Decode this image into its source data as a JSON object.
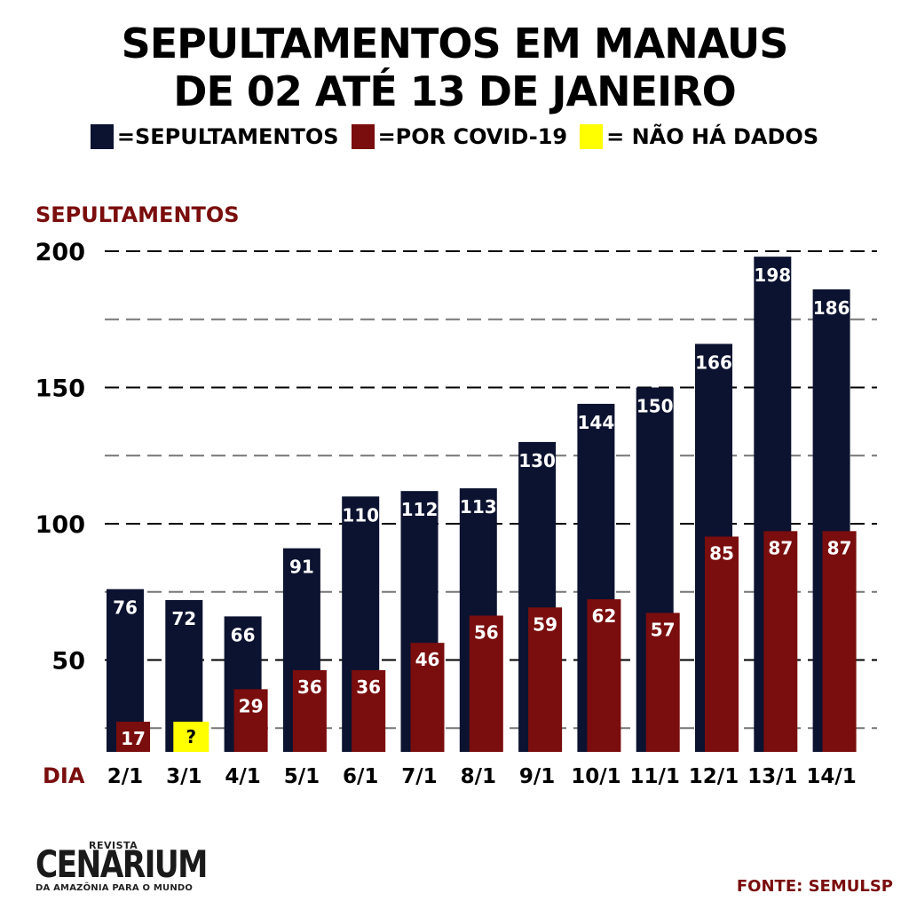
{
  "header": {
    "title_line1": "SEPULTAMENTOS EM MANAUS",
    "title_line2": "DE 02 ATÉ 13 DE JANEIRO"
  },
  "legend": {
    "sepultamentos": "=SEPULTAMENTOS",
    "covid": "=POR COVID-19",
    "no_data": "= NÃO HÁ DADOS"
  },
  "colors": {
    "sepultamentos": "#0c1330",
    "covid": "#7a0d0d",
    "no_data": "#ffff00",
    "accent": "#7a0d0d"
  },
  "footer": {
    "source": "FONTE: SEMULSP",
    "logo_small": "REVISTA",
    "logo_main": "CENARIUM",
    "logo_tagline": "DA AMAZÔNIA PARA O MUNDO"
  },
  "chart_data": {
    "type": "bar",
    "ylabel": "SEPULTAMENTOS",
    "xlabel": "DIA",
    "ylim": [
      20,
      200
    ],
    "yticks": [
      50,
      100,
      150,
      200
    ],
    "grid": true,
    "categories": [
      "2/1",
      "3/1",
      "4/1",
      "5/1",
      "6/1",
      "7/1",
      "8/1",
      "9/1",
      "10/1",
      "11/1",
      "12/1",
      "13/1",
      "14/1"
    ],
    "series": [
      {
        "name": "SEPULTAMENTOS",
        "values": [
          76,
          72,
          66,
          91,
          110,
          112,
          113,
          130,
          144,
          150,
          166,
          198,
          186
        ]
      },
      {
        "name": "POR COVID-19",
        "values": [
          17,
          null,
          29,
          36,
          36,
          46,
          56,
          59,
          62,
          57,
          85,
          87,
          87
        ]
      }
    ],
    "no_data_label": "?"
  }
}
